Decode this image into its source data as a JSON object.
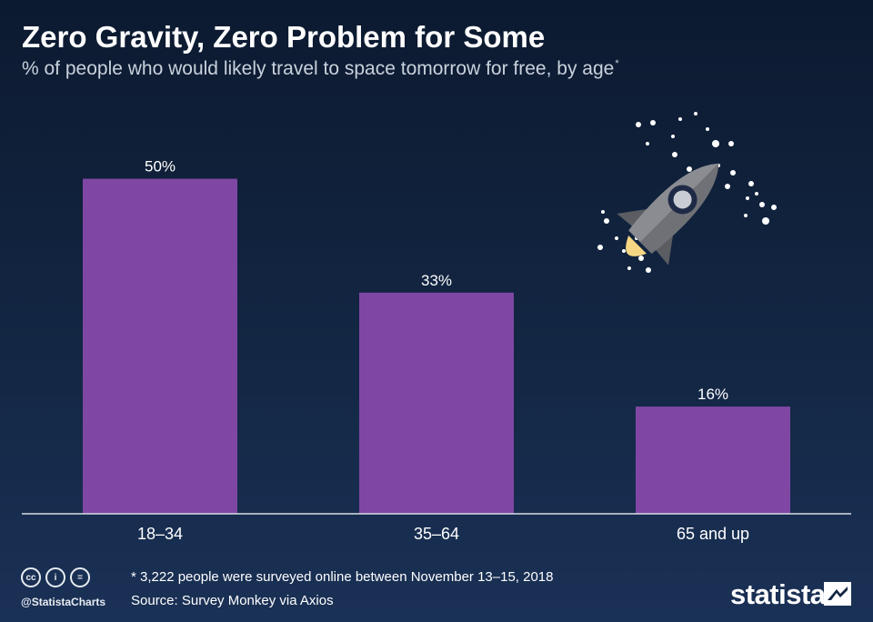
{
  "title": "Zero Gravity, Zero Problem for Some",
  "subtitle": "% of people who would likely travel to space tomorrow for free, by age",
  "subtitle_mark": "*",
  "footnote": "* 3,222 people were surveyed online between November 13–15, 2018",
  "source": "Source: Survey Monkey via Axios",
  "footer": {
    "handle": "@StatistaCharts",
    "brand": "statista",
    "license_icons": [
      {
        "name": "cc-icon",
        "glyph": "cc"
      },
      {
        "name": "attribution-icon",
        "glyph": "i"
      },
      {
        "name": "no-derivatives-icon",
        "glyph": "="
      }
    ]
  },
  "illustration": {
    "name": "rocket-illustration"
  },
  "colors": {
    "bar": "#7f47a3",
    "background_top": "#0c1a30",
    "background_bottom": "#1a3156",
    "text": "#ffffff"
  },
  "chart_data": {
    "type": "bar",
    "categories": [
      "18–34",
      "35–64",
      "65 and up"
    ],
    "values": [
      50,
      33,
      16
    ],
    "value_labels": [
      "50%",
      "33%",
      "16%"
    ],
    "unit": "%",
    "ylim": [
      0,
      57
    ],
    "grid": false,
    "legend": "none"
  }
}
